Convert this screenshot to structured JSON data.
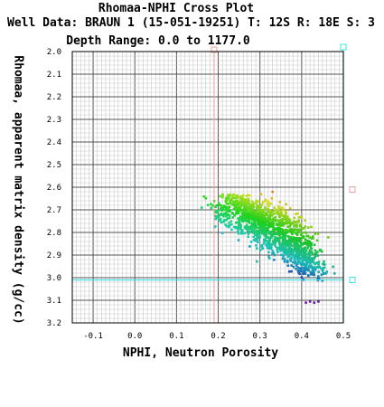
{
  "chart_data": {
    "type": "scatter",
    "title": "Rhomaa-NPHI Cross Plot",
    "subtitle": "Well Data: BRAUN 1 (15-051-19251) T: 12S R: 18E S: 3",
    "depth_range": "Depth Range: 0.0 to 1177.0",
    "xlabel": "NPHI, Neutron Porosity",
    "ylabel": "Rhomaa, apparent matrix density (g/cc)",
    "xlim": [
      -0.15,
      0.5
    ],
    "ylim": [
      2.0,
      3.2
    ],
    "y_inverted": true,
    "grid": true,
    "x_ticks": [
      "-0.1",
      "0.0",
      "0.1",
      "0.2",
      "0.3",
      "0.4",
      "0.5"
    ],
    "y_ticks": [
      "2.0",
      "2.1",
      "2.2",
      "2.3",
      "2.4",
      "2.5",
      "2.6",
      "2.7",
      "2.8",
      "2.9",
      "3.0",
      "3.1",
      "3.2"
    ],
    "reference_lines": {
      "vertical_x": 0.19,
      "horizontal_y": 3.01
    },
    "clusters": [
      {
        "cx": 0.27,
        "cy": 2.7,
        "sx": 0.03,
        "sy": 0.03,
        "n": 300
      },
      {
        "cx": 0.31,
        "cy": 2.78,
        "sx": 0.04,
        "sy": 0.05,
        "n": 420
      },
      {
        "cx": 0.38,
        "cy": 2.86,
        "sx": 0.03,
        "sy": 0.04,
        "n": 280
      },
      {
        "cx": 0.41,
        "cy": 2.93,
        "sx": 0.025,
        "sy": 0.035,
        "n": 180
      },
      {
        "cx": 0.22,
        "cy": 2.73,
        "sx": 0.025,
        "sy": 0.03,
        "n": 90
      },
      {
        "cx": 0.36,
        "cy": 2.74,
        "sx": 0.035,
        "sy": 0.03,
        "n": 150
      }
    ],
    "outliers": [
      {
        "x": 0.41,
        "y": 3.11
      },
      {
        "x": 0.42,
        "y": 3.105
      },
      {
        "x": 0.43,
        "y": 3.11
      },
      {
        "x": 0.44,
        "y": 3.105
      },
      {
        "x": 0.33,
        "y": 2.62
      },
      {
        "x": 0.45,
        "y": 2.97
      },
      {
        "x": 0.16,
        "y": 2.69
      }
    ]
  }
}
